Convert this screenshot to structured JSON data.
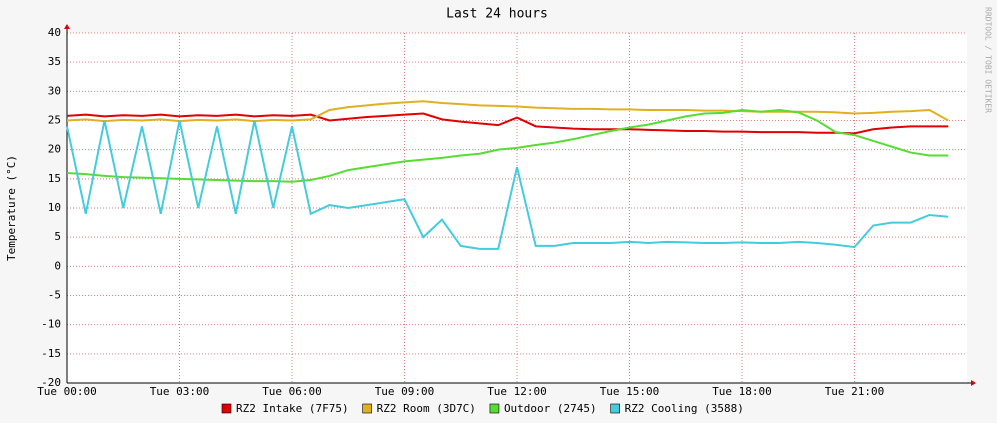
{
  "chart_data": {
    "type": "line",
    "title": "Last 24 hours",
    "ylabel": "Temperature (°C)",
    "watermark": "RRDTOOL / TOBI OETIKER",
    "x": [
      0,
      0.5,
      1,
      1.5,
      2,
      2.5,
      3,
      3.5,
      4,
      4.5,
      5,
      5.5,
      6,
      6.5,
      7,
      7.5,
      8,
      8.5,
      9,
      9.5,
      10,
      10.5,
      11,
      11.5,
      12,
      12.5,
      13,
      13.5,
      14,
      14.5,
      15,
      15.5,
      16,
      16.5,
      17,
      17.5,
      18,
      18.5,
      19,
      19.5,
      20,
      20.5,
      21,
      21.5,
      22,
      22.5,
      23,
      23.5
    ],
    "xlim": [
      0,
      24
    ],
    "xticks": [
      {
        "value": 0,
        "label": "Tue 00:00"
      },
      {
        "value": 3,
        "label": "Tue 03:00"
      },
      {
        "value": 6,
        "label": "Tue 06:00"
      },
      {
        "value": 9,
        "label": "Tue 09:00"
      },
      {
        "value": 12,
        "label": "Tue 12:00"
      },
      {
        "value": 15,
        "label": "Tue 15:00"
      },
      {
        "value": 18,
        "label": "Tue 18:00"
      },
      {
        "value": 21,
        "label": "Tue 21:00"
      }
    ],
    "ylim": [
      -20,
      40
    ],
    "yticks": [
      -20,
      -15,
      -10,
      -5,
      0,
      5,
      10,
      15,
      20,
      25,
      30,
      35,
      40
    ],
    "grid": true,
    "series": [
      {
        "name": "RZ2 Intake (7F75)",
        "color": "#e00000",
        "values": [
          25.8,
          26,
          25.7,
          25.9,
          25.8,
          26,
          25.7,
          25.9,
          25.8,
          26,
          25.7,
          25.9,
          25.8,
          26,
          25,
          25.3,
          25.6,
          25.8,
          26,
          26.2,
          25.2,
          24.8,
          24.5,
          24.2,
          25.5,
          24,
          23.8,
          23.6,
          23.5,
          23.5,
          23.5,
          23.4,
          23.3,
          23.2,
          23.2,
          23.1,
          23.1,
          23,
          23,
          23,
          22.9,
          22.9,
          22.8,
          23.5,
          23.8,
          24,
          24,
          24
        ]
      },
      {
        "name": "RZ2 Room (3D7C)",
        "color": "#e0b020",
        "values": [
          25,
          25.2,
          24.9,
          25.1,
          25,
          25.2,
          24.9,
          25.1,
          25,
          25.2,
          24.9,
          25.1,
          25,
          25.2,
          26.8,
          27.3,
          27.6,
          27.9,
          28.1,
          28.3,
          28,
          27.8,
          27.6,
          27.5,
          27.4,
          27.2,
          27.1,
          27,
          27,
          26.9,
          26.9,
          26.8,
          26.8,
          26.8,
          26.7,
          26.7,
          26.6,
          26.5,
          26.5,
          26.5,
          26.5,
          26.4,
          26.2,
          26.3,
          26.5,
          26.6,
          26.8,
          25
        ]
      },
      {
        "name": "Outdoor (2745)",
        "color": "#55dd33",
        "values": [
          16,
          15.8,
          15.5,
          15.3,
          15.2,
          15.1,
          15,
          14.9,
          14.8,
          14.7,
          14.6,
          14.6,
          14.5,
          14.8,
          15.5,
          16.5,
          17,
          17.5,
          18,
          18.3,
          18.6,
          19,
          19.3,
          20,
          20.3,
          20.8,
          21.2,
          21.8,
          22.5,
          23.2,
          23.8,
          24.3,
          25,
          25.7,
          26.2,
          26.3,
          26.8,
          26.5,
          26.8,
          26.4,
          25,
          23,
          22.5,
          21.5,
          20.5,
          19.5,
          19,
          19
        ]
      },
      {
        "name": "RZ2 Cooling (3588)",
        "color": "#44ccdd",
        "values": [
          24,
          9,
          25,
          10,
          24,
          9,
          25,
          10,
          24,
          9,
          25,
          10,
          24,
          9,
          10.5,
          10,
          10.5,
          11,
          11.5,
          5,
          8,
          3.5,
          3,
          3,
          17,
          3.5,
          3.5,
          4,
          4,
          4,
          4.2,
          4,
          4.2,
          4.1,
          4,
          4,
          4.1,
          4,
          4,
          4.2,
          4,
          3.7,
          3.3,
          7,
          7.5,
          7.5,
          8.8,
          8.5
        ]
      }
    ]
  }
}
